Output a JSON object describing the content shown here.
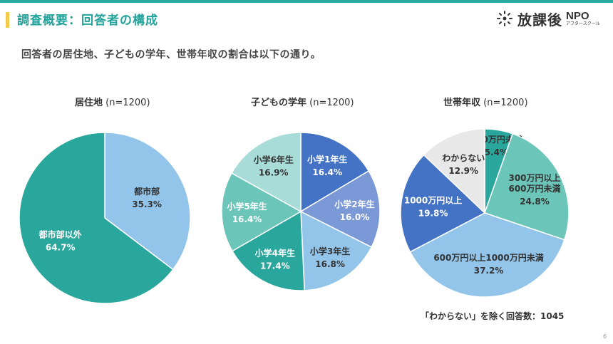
{
  "header": {
    "title": "調査概要：回答者の構成",
    "logo_text": "放課後",
    "logo_npo": "NPO",
    "logo_sub": "アフタースクール"
  },
  "lead": "回答者の居住地、子どもの学年、世帯年収の割合は以下の通り。",
  "footnote": "「わからない」を除く回答数：1045",
  "page_number": "6",
  "chart_data": [
    {
      "type": "pie",
      "title": "居住地",
      "title_n": "(n=1200)",
      "start_angle_deg": 0,
      "slices": [
        {
          "label": "都市部",
          "value": 35.3,
          "display": "35.3%",
          "color": "#93c5ea",
          "text_color": "#333333"
        },
        {
          "label": "都市部以外",
          "value": 64.7,
          "display": "64.7%",
          "color": "#2aa79d",
          "text_color": "#ffffff"
        }
      ]
    },
    {
      "type": "pie",
      "title": "子どもの学年",
      "title_n": "(n=1200)",
      "start_angle_deg": 0,
      "slices": [
        {
          "label": "小学1年生",
          "value": 16.4,
          "display": "16.4%",
          "color": "#4472c4",
          "text_color": "#ffffff"
        },
        {
          "label": "小学2年生",
          "value": 16.0,
          "display": "16.0%",
          "color": "#7b99d6",
          "text_color": "#ffffff"
        },
        {
          "label": "小学3年生",
          "value": 16.8,
          "display": "16.8%",
          "color": "#93c5ea",
          "text_color": "#333333"
        },
        {
          "label": "小学4年生",
          "value": 17.4,
          "display": "17.4%",
          "color": "#2aa79d",
          "text_color": "#ffffff"
        },
        {
          "label": "小学5年生",
          "value": 16.4,
          "display": "16.4%",
          "color": "#6cc5b9",
          "text_color": "#ffffff"
        },
        {
          "label": "小学6年生",
          "value": 16.9,
          "display": "16.9%",
          "color": "#a8dcd8",
          "text_color": "#333333"
        }
      ]
    },
    {
      "type": "pie",
      "title": "世帯年収",
      "title_n": "(n=1200)",
      "start_angle_deg": 0,
      "slices": [
        {
          "label": "300万円未満",
          "value": 5.4,
          "display": "5.4%",
          "color": "#2aa79d",
          "text_color": "#333333"
        },
        {
          "label": "300万円以上\n600万円未満",
          "value": 24.8,
          "display": "24.8%",
          "color": "#6cc5b9",
          "text_color": "#333333"
        },
        {
          "label": "600万円以上1000万円未満",
          "value": 37.2,
          "display": "37.2%",
          "color": "#93c5ea",
          "text_color": "#333333"
        },
        {
          "label": "1000万円以上",
          "value": 19.8,
          "display": "19.8%",
          "color": "#4472c4",
          "text_color": "#ffffff"
        },
        {
          "label": "わからない",
          "value": 12.9,
          "display": "12.9%",
          "color": "#e8e8e8",
          "text_color": "#333333"
        }
      ]
    }
  ]
}
